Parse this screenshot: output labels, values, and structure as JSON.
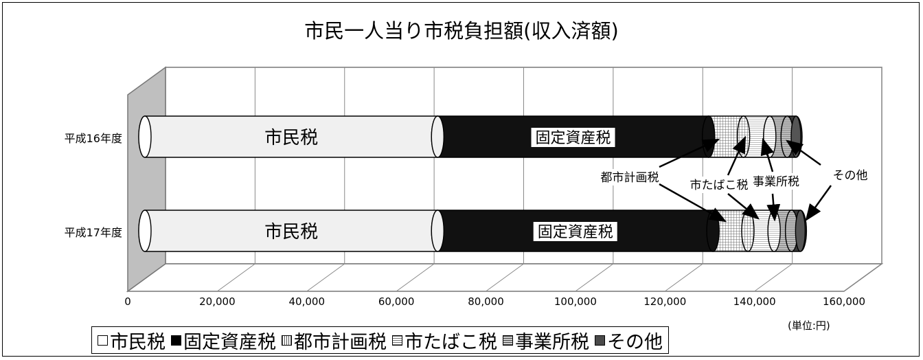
{
  "chart_data": {
    "type": "bar",
    "orientation": "horizontal",
    "stacked": true,
    "title": "市民一人当り市税負担額(収入済額)",
    "categories": [
      "平成16年度",
      "平成17年度"
    ],
    "series": [
      {
        "name": "市民税",
        "values": [
          67000,
          67000
        ],
        "color": "#f2f2f2"
      },
      {
        "name": "固定資産税",
        "values": [
          62000,
          63000
        ],
        "color": "#1a1a1a"
      },
      {
        "name": "都市計画税",
        "values": [
          8000,
          8000
        ],
        "color": "#d0d0d0"
      },
      {
        "name": "市たばこ税",
        "values": [
          6000,
          6000
        ],
        "color": "#e4e4e4"
      },
      {
        "name": "事業所税",
        "values": [
          4000,
          4000
        ],
        "color": "#bbbbbb"
      },
      {
        "name": "その他",
        "values": [
          2000,
          2000
        ],
        "color": "#4a4a4a"
      }
    ],
    "bar_labels": [
      "市民税",
      "固定資産税"
    ],
    "x_ticks": [
      "0",
      "20,000",
      "40,000",
      "60,000",
      "80,000",
      "100,000",
      "120,000",
      "140,000",
      "160,000"
    ],
    "xlim": [
      0,
      160000
    ],
    "unit_label": "(単位:円)",
    "annotations": [
      "都市計画税",
      "市たばこ税",
      "事業所税",
      "その他"
    ],
    "grid": true,
    "legend_position": "bottom"
  }
}
